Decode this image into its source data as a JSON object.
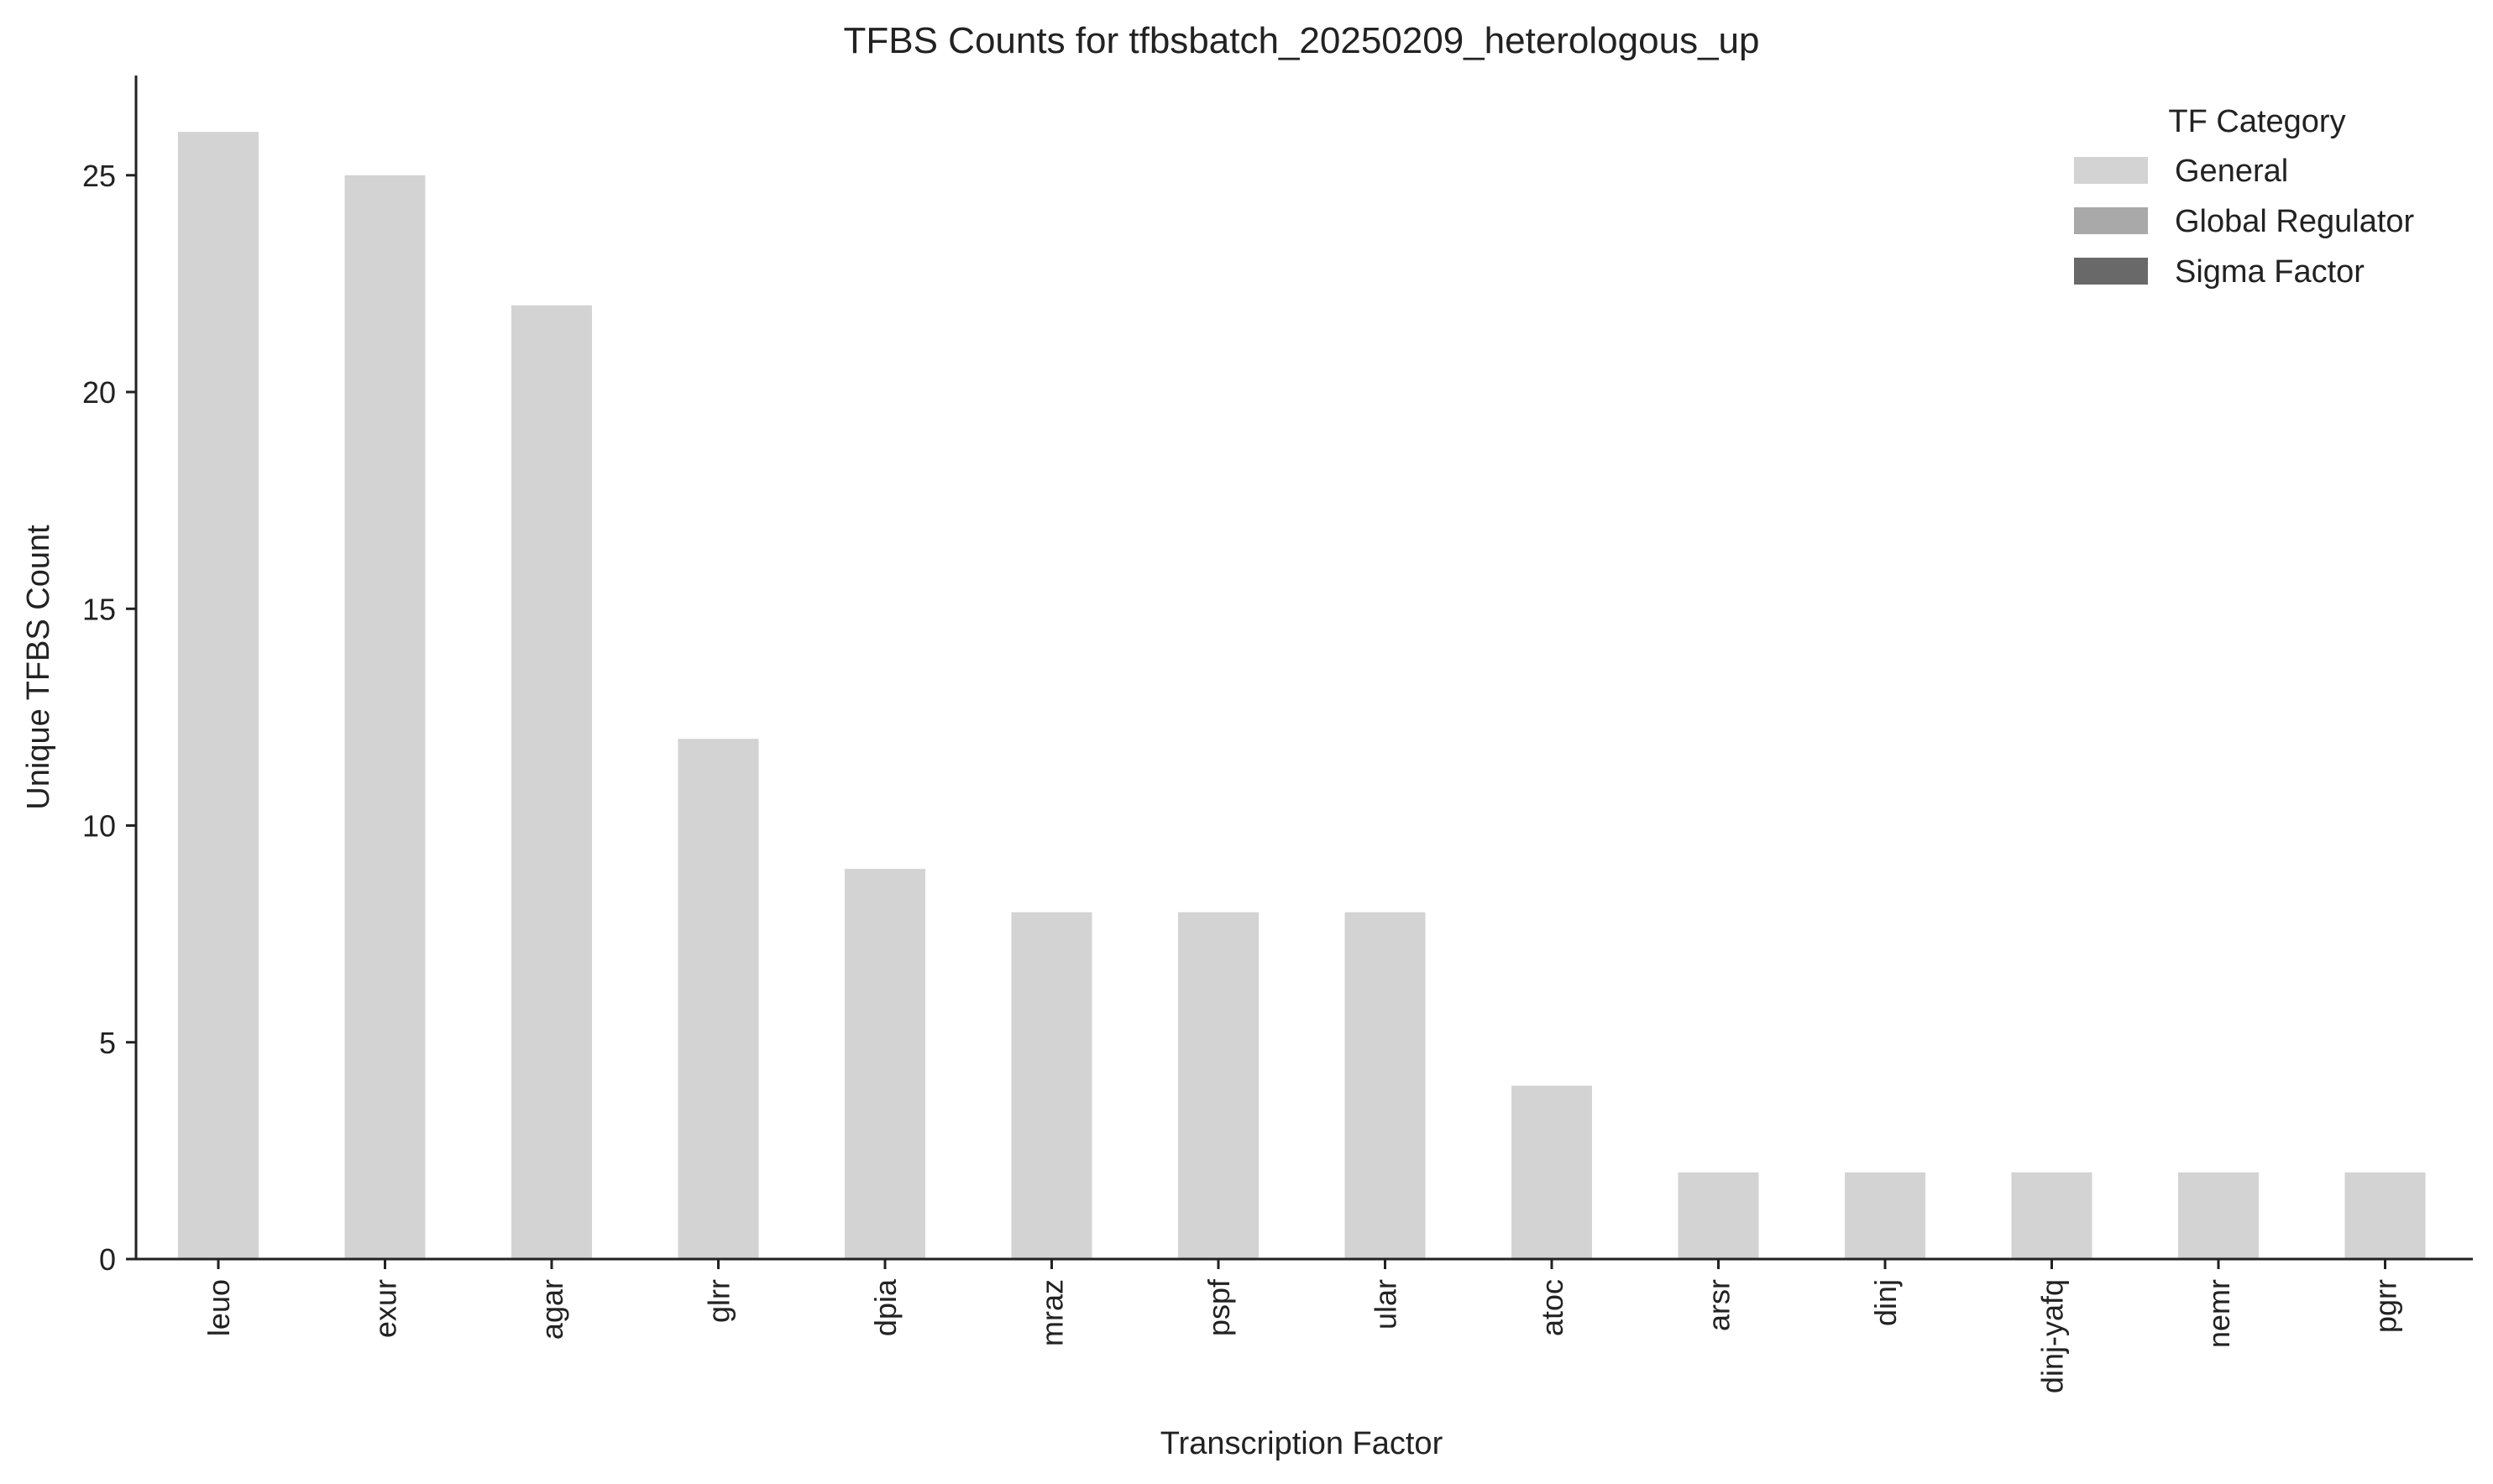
{
  "chart_data": {
    "type": "bar",
    "title": "TFBS Counts for tfbsbatch_20250209_heterologous_up",
    "xlabel": "Transcription Factor",
    "ylabel": "Unique TFBS Count",
    "ylim": [
      0,
      27.3
    ],
    "yticks": [
      0,
      5,
      10,
      15,
      20,
      25
    ],
    "grid": false,
    "categories": [
      "leuo",
      "exur",
      "agar",
      "glrr",
      "dpia",
      "mraz",
      "pspf",
      "ular",
      "atoc",
      "arsr",
      "dinj",
      "dinj-yafq",
      "nemr",
      "pgrr"
    ],
    "values": [
      26,
      25,
      22,
      12,
      9,
      8,
      8,
      8,
      4,
      2,
      2,
      2,
      2,
      2
    ],
    "bar_category": [
      "General",
      "General",
      "General",
      "General",
      "General",
      "General",
      "General",
      "General",
      "General",
      "General",
      "General",
      "General",
      "General",
      "General"
    ],
    "legend": {
      "title": "TF Category",
      "placement": "top-right",
      "entries": [
        {
          "label": "General",
          "color": "#d3d3d3"
        },
        {
          "label": "Global Regulator",
          "color": "#a9a9a9"
        },
        {
          "label": "Sigma Factor",
          "color": "#696969"
        }
      ]
    }
  }
}
